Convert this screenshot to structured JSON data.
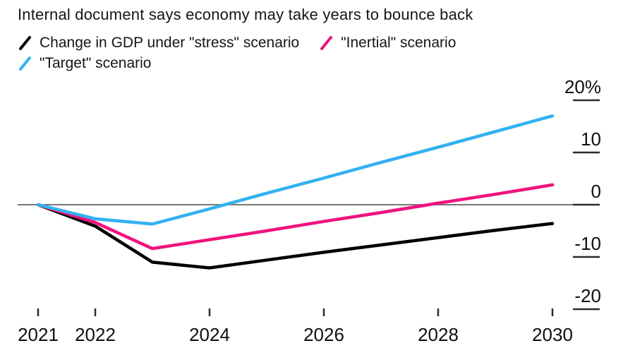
{
  "title": "Internal document says economy may take years to bounce back",
  "legend": [
    {
      "label": "Change in GDP under \"stress\" scenario",
      "color": "#000000"
    },
    {
      "label": "\"Inertial\" scenario",
      "color": "#f0137d"
    },
    {
      "label": "\"Target\" scenario",
      "color": "#33b1f0"
    }
  ],
  "chart_data": {
    "type": "line",
    "x": [
      2021,
      2022,
      2023,
      2024,
      2025,
      2026,
      2027,
      2028,
      2029,
      2030
    ],
    "series": [
      {
        "name": "Change in GDP under \"stress\" scenario",
        "color": "#000000",
        "values": [
          0,
          -4.1,
          -11.0,
          -12.1,
          -10.6,
          -9.1,
          -7.7,
          -6.3,
          -4.9,
          -3.6
        ]
      },
      {
        "name": "\"Inertial\" scenario",
        "color": "#f0137d",
        "values": [
          0,
          -3.4,
          -8.4,
          -6.7,
          -5.0,
          -3.2,
          -1.5,
          0.3,
          2.0,
          3.8
        ]
      },
      {
        "name": "\"Target\" scenario",
        "color": "#33b1f0",
        "values": [
          0,
          -2.7,
          -3.7,
          -0.8,
          2.2,
          5.1,
          8.1,
          11.0,
          14.0,
          17.0
        ]
      }
    ],
    "title": "Internal document says economy may take years to bounce back",
    "xlabel": "",
    "ylabel": "",
    "ylim": [
      -20,
      20
    ],
    "xlim": [
      2021,
      2030
    ],
    "grid": false,
    "legend_position": "top-left",
    "y_ticks": [
      {
        "value": 20,
        "label": "20%"
      },
      {
        "value": 10,
        "label": "10"
      },
      {
        "value": 0,
        "label": "0"
      },
      {
        "value": -10,
        "label": "-10"
      },
      {
        "value": -20,
        "label": "-20"
      }
    ],
    "x_ticks": [
      {
        "value": 2021,
        "label": "2021"
      },
      {
        "value": 2022,
        "label": "2022"
      },
      {
        "value": 2024,
        "label": "2024"
      },
      {
        "value": 2026,
        "label": "2026"
      },
      {
        "value": 2028,
        "label": "2028"
      },
      {
        "value": 2030,
        "label": "2030"
      }
    ]
  },
  "colors": {
    "zero_line": "#757575",
    "tick_mark": "#2b2b2b",
    "text": "#161616",
    "background": "#ffffff"
  }
}
